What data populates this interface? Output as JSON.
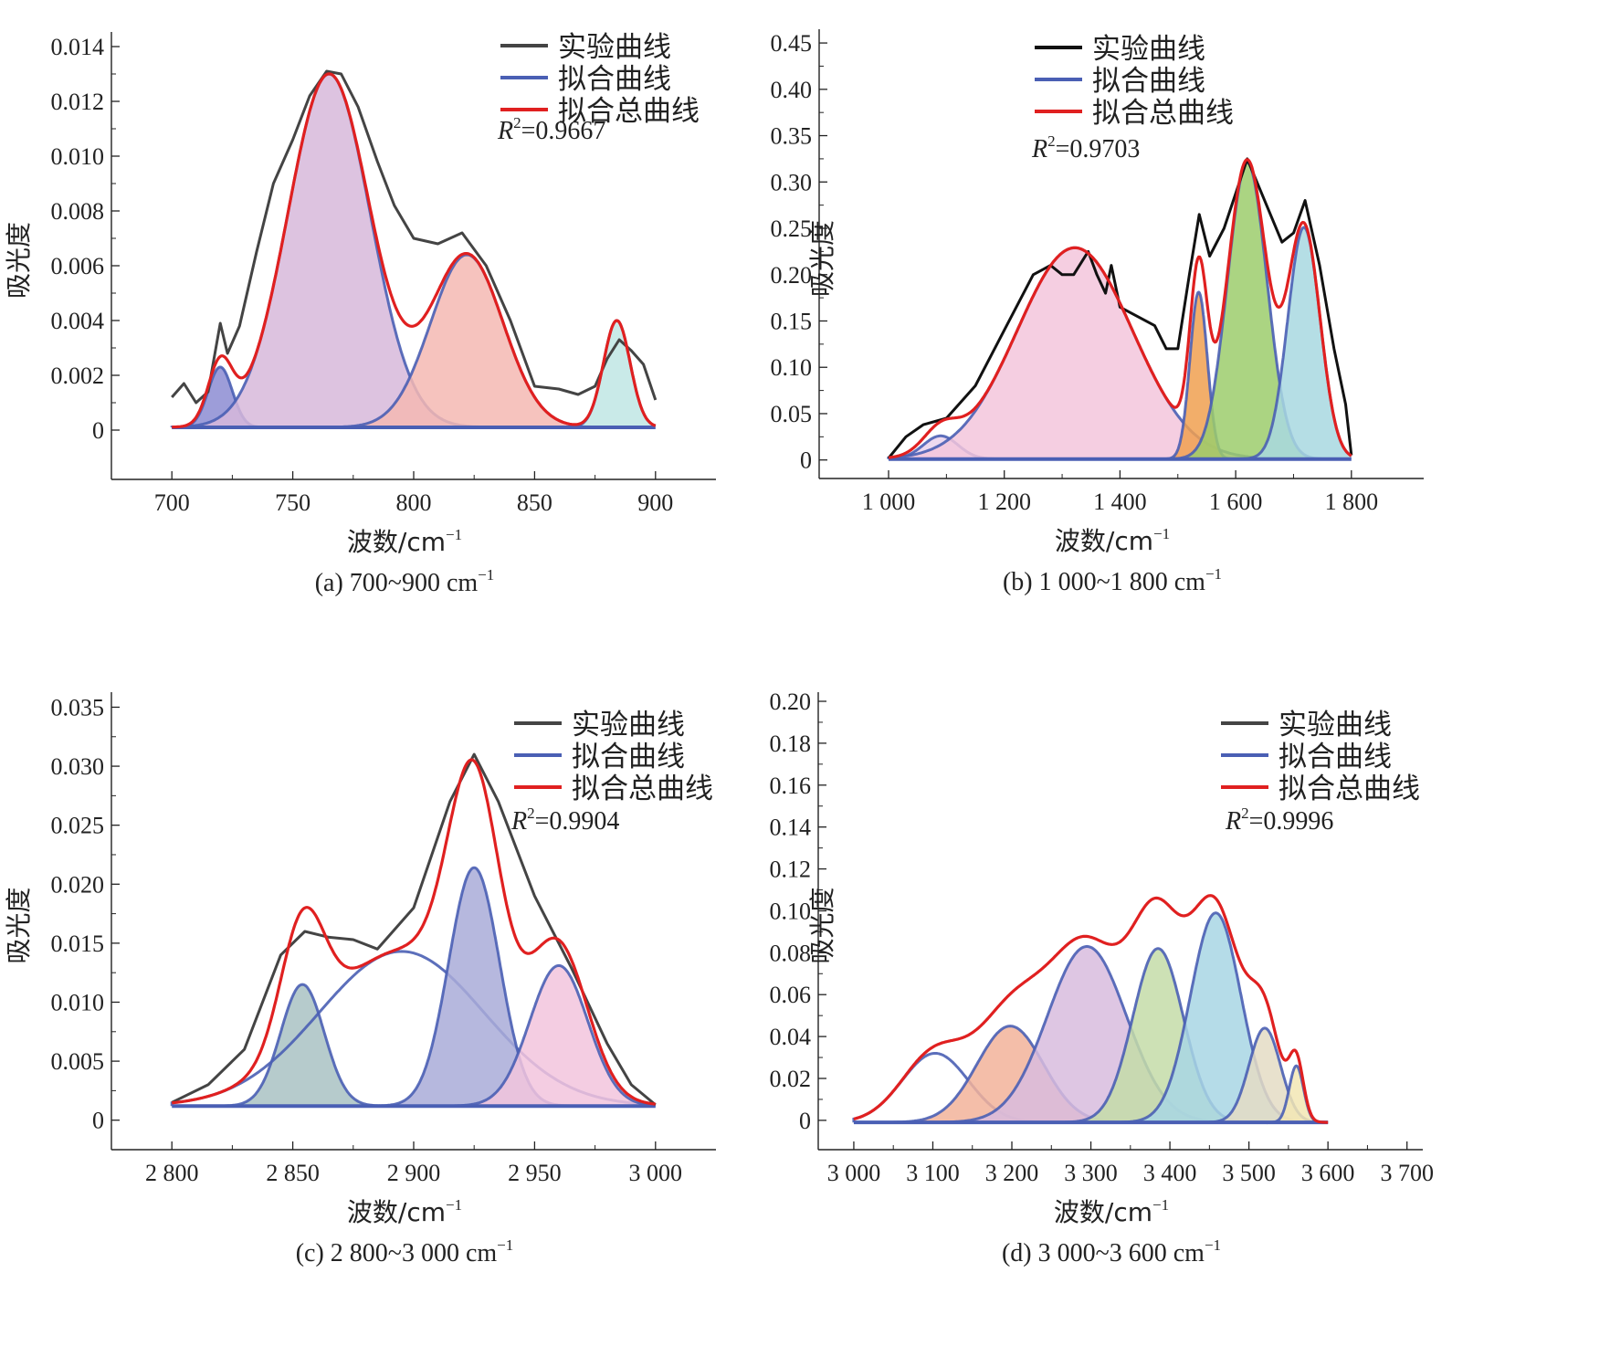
{
  "figure": {
    "panels": [
      {
        "caption": "(a) 700~900 cm",
        "caption_sup": "−1",
        "ylabel": "吸光度",
        "xlabel": "波数/cm",
        "xlabel_sup": "−1",
        "r2_var": "R",
        "r2_sup": "2",
        "r2_value": "=0.9667",
        "legend": [
          "实验曲线",
          "拟合曲线",
          "拟合总曲线"
        ]
      },
      {
        "caption": "(b) 1 000~1 800 cm",
        "caption_sup": "−1",
        "ylabel": "吸光度",
        "xlabel": "波数/cm",
        "xlabel_sup": "−1",
        "r2_var": "R",
        "r2_sup": "2",
        "r2_value": "=0.9703",
        "legend": [
          "实验曲线",
          "拟合曲线",
          "拟合总曲线"
        ]
      },
      {
        "caption": "(c) 2 800~3 000 cm",
        "caption_sup": "−1",
        "ylabel": "吸光度",
        "xlabel": "波数/cm",
        "xlabel_sup": "−1",
        "r2_var": "R",
        "r2_sup": "2",
        "r2_value": "=0.9904",
        "legend": [
          "实验曲线",
          "拟合曲线",
          "拟合总曲线"
        ]
      },
      {
        "caption": "(d) 3 000~3 600 cm",
        "caption_sup": "−1",
        "ylabel": "吸光度",
        "xlabel": "波数/cm",
        "xlabel_sup": "−1",
        "r2_var": "R",
        "r2_sup": "2",
        "r2_value": "=0.9996",
        "legend": [
          "实验曲线",
          "拟合曲线",
          "拟合总曲线"
        ]
      }
    ]
  },
  "chart_data": [
    {
      "type": "area",
      "xlim": [
        675,
        925
      ],
      "ylim": [
        -0.0018,
        0.0142
      ],
      "x_ticks": [
        700,
        750,
        800,
        850,
        900
      ],
      "x_tick_labels": [
        "700",
        "750",
        "800",
        "850",
        "900"
      ],
      "y_ticks": [
        0,
        0.002,
        0.004,
        0.006,
        0.008,
        0.01,
        0.012,
        0.014
      ],
      "y_tick_labels": [
        "0",
        "0.002",
        "0.004",
        "0.006",
        "0.008",
        "0.010",
        "0.012",
        "0.014"
      ],
      "x_range": [
        700,
        900
      ],
      "baseline": 0.0001,
      "peaks": [
        {
          "center": 720,
          "height": 0.0022,
          "sigma": 5,
          "fill": "#8c8cd2"
        },
        {
          "center": 765,
          "height": 0.0129,
          "sigma": 17,
          "fill": "#d7b8da"
        },
        {
          "center": 822,
          "height": 0.0063,
          "sigma": 15,
          "fill": "#f4b8b3"
        },
        {
          "center": 884,
          "height": 0.0039,
          "sigma": 5.5,
          "fill": "#bfe6e4"
        }
      ],
      "experimental": {
        "x": [
          700,
          705,
          710,
          715,
          720,
          723,
          728,
          735,
          742,
          750,
          757,
          764,
          770,
          777,
          785,
          792,
          800,
          810,
          820,
          830,
          840,
          850,
          860,
          868,
          875,
          880,
          885,
          890,
          895,
          900
        ],
        "y": [
          0.0012,
          0.0017,
          0.001,
          0.0014,
          0.0039,
          0.0028,
          0.0038,
          0.0065,
          0.009,
          0.0106,
          0.0122,
          0.0131,
          0.013,
          0.0118,
          0.0098,
          0.0082,
          0.007,
          0.0068,
          0.0072,
          0.006,
          0.004,
          0.0016,
          0.0015,
          0.0013,
          0.0016,
          0.0026,
          0.0033,
          0.0029,
          0.0024,
          0.0011
        ]
      }
    },
    {
      "type": "area",
      "xlim": [
        880,
        1925
      ],
      "ylim": [
        -0.02,
        0.455
      ],
      "x_ticks": [
        1000,
        1200,
        1400,
        1600,
        1800
      ],
      "x_tick_labels": [
        "1 000",
        "1 200",
        "1 400",
        "1 600",
        "1 800"
      ],
      "y_ticks": [
        0,
        0.05,
        0.1,
        0.15,
        0.2,
        0.25,
        0.3,
        0.35,
        0.4,
        0.45
      ],
      "y_tick_labels": [
        "0",
        "0.05",
        "0.10",
        "0.15",
        "0.20",
        "0.25",
        "0.30",
        "0.35",
        "0.40",
        "0.45"
      ],
      "x_range": [
        1000,
        1800
      ],
      "baseline": 0.001,
      "peaks": [
        {
          "center": 1090,
          "height": 0.025,
          "sigma": 30,
          "fill": "#ead2ec"
        },
        {
          "center": 1322,
          "height": 0.228,
          "sigma": 100,
          "fill": "#f3c5dc"
        },
        {
          "center": 1536,
          "height": 0.18,
          "sigma": 15,
          "fill": "#f0a050"
        },
        {
          "center": 1620,
          "height": 0.32,
          "sigma": 34,
          "fill": "#9ccc6c"
        },
        {
          "center": 1718,
          "height": 0.25,
          "sigma": 28,
          "fill": "#a8d8e0"
        }
      ],
      "experimental": {
        "x": [
          1000,
          1030,
          1060,
          1100,
          1150,
          1200,
          1250,
          1280,
          1300,
          1320,
          1345,
          1360,
          1375,
          1385,
          1400,
          1430,
          1460,
          1480,
          1500,
          1520,
          1537,
          1555,
          1580,
          1620,
          1650,
          1680,
          1700,
          1720,
          1745,
          1770,
          1790,
          1800
        ],
        "y": [
          0.002,
          0.025,
          0.038,
          0.045,
          0.08,
          0.14,
          0.2,
          0.21,
          0.2,
          0.2,
          0.225,
          0.2,
          0.18,
          0.21,
          0.165,
          0.155,
          0.145,
          0.12,
          0.12,
          0.2,
          0.265,
          0.22,
          0.25,
          0.325,
          0.28,
          0.235,
          0.245,
          0.28,
          0.21,
          0.12,
          0.06,
          0.005
        ]
      }
    },
    {
      "type": "area",
      "xlim": [
        2775,
        3025
      ],
      "ylim": [
        -0.0025,
        0.0355
      ],
      "x_ticks": [
        2800,
        2850,
        2900,
        2950,
        3000
      ],
      "x_tick_labels": [
        "2 800",
        "2 850",
        "2 900",
        "2 950",
        "3 000"
      ],
      "y_ticks": [
        0,
        0.005,
        0.01,
        0.015,
        0.02,
        0.025,
        0.03,
        0.035
      ],
      "y_tick_labels": [
        "0",
        "0.005",
        "0.010",
        "0.015",
        "0.020",
        "0.025",
        "0.030",
        "0.035"
      ],
      "x_range": [
        2800,
        3000
      ],
      "baseline": 0.0012,
      "peaks": [
        {
          "center": 2854,
          "height": 0.0103,
          "sigma": 9,
          "fill": "#a9c2c3"
        },
        {
          "center": 2895,
          "height": 0.0131,
          "sigma": 34,
          "fill": "none"
        },
        {
          "center": 2925,
          "height": 0.0202,
          "sigma": 10.5,
          "fill": "#a9acd8"
        },
        {
          "center": 2960,
          "height": 0.0119,
          "sigma": 12,
          "fill": "#f2c4dd"
        }
      ],
      "experimental": {
        "x": [
          2800,
          2815,
          2830,
          2845,
          2855,
          2865,
          2875,
          2885,
          2900,
          2915,
          2925,
          2935,
          2950,
          2965,
          2980,
          2990,
          3000
        ],
        "y": [
          0.0015,
          0.003,
          0.006,
          0.014,
          0.016,
          0.0155,
          0.0153,
          0.0145,
          0.018,
          0.027,
          0.031,
          0.027,
          0.019,
          0.013,
          0.0065,
          0.003,
          0.0013
        ]
      }
    },
    {
      "type": "area",
      "xlim": [
        2955,
        3720
      ],
      "ylim": [
        -0.014,
        0.2
      ],
      "x_ticks": [
        3000,
        3100,
        3200,
        3300,
        3400,
        3500,
        3600,
        3700
      ],
      "x_tick_labels": [
        "3 000",
        "3 100",
        "3 200",
        "3 300",
        "3 400",
        "3 500",
        "3 600",
        "3 700"
      ],
      "y_ticks": [
        0,
        0.02,
        0.04,
        0.06,
        0.08,
        0.1,
        0.12,
        0.14,
        0.16,
        0.18,
        0.2
      ],
      "y_tick_labels": [
        "0",
        "0.02",
        "0.04",
        "0.06",
        "0.08",
        "0.10",
        "0.12",
        "0.14",
        "0.16",
        "0.18",
        "0.20"
      ],
      "x_range": [
        3000,
        3600
      ],
      "baseline": -0.001,
      "peaks": [
        {
          "center": 3103,
          "height": 0.033,
          "sigma": 42,
          "fill": "none"
        },
        {
          "center": 3198,
          "height": 0.046,
          "sigma": 42,
          "fill": "#f2b39a"
        },
        {
          "center": 3295,
          "height": 0.084,
          "sigma": 50,
          "fill": "#d8bcde"
        },
        {
          "center": 3385,
          "height": 0.083,
          "sigma": 32,
          "fill": "#c4dca8"
        },
        {
          "center": 3458,
          "height": 0.1,
          "sigma": 32,
          "fill": "#a8d6e4"
        },
        {
          "center": 3520,
          "height": 0.045,
          "sigma": 20,
          "fill": "#e4dcc4"
        },
        {
          "center": 3560,
          "height": 0.027,
          "sigma": 9,
          "fill": "#f2e6b4"
        }
      ],
      "experimental": {
        "x": [
          3000,
          3600
        ],
        "y": [
          0.002,
          0.002
        ]
      }
    }
  ]
}
